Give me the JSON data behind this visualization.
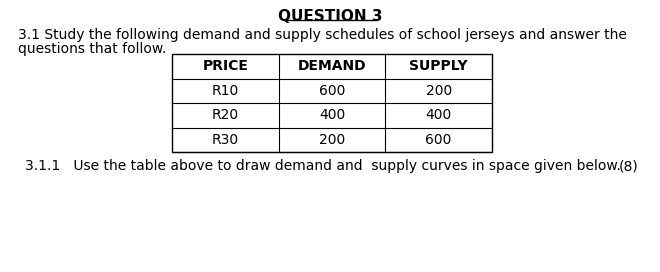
{
  "title": "QUESTION 3",
  "intro_text_line1": "3.1 Study the following demand and supply schedules of school jerseys and answer the",
  "intro_text_line2": "questions that follow.",
  "table_headers": [
    "PRICE",
    "DEMAND",
    "SUPPLY"
  ],
  "table_rows": [
    [
      "R10",
      "600",
      "200"
    ],
    [
      "R20",
      "400",
      "400"
    ],
    [
      "R30",
      "200",
      "600"
    ]
  ],
  "footer_text": "3.1.1   Use the table above to draw demand and  supply curves in space given below.",
  "footer_mark": "(8)",
  "bg_color": "#ffffff",
  "text_color": "#000000",
  "font_size_title": 11,
  "font_size_body": 10,
  "font_size_table": 10
}
